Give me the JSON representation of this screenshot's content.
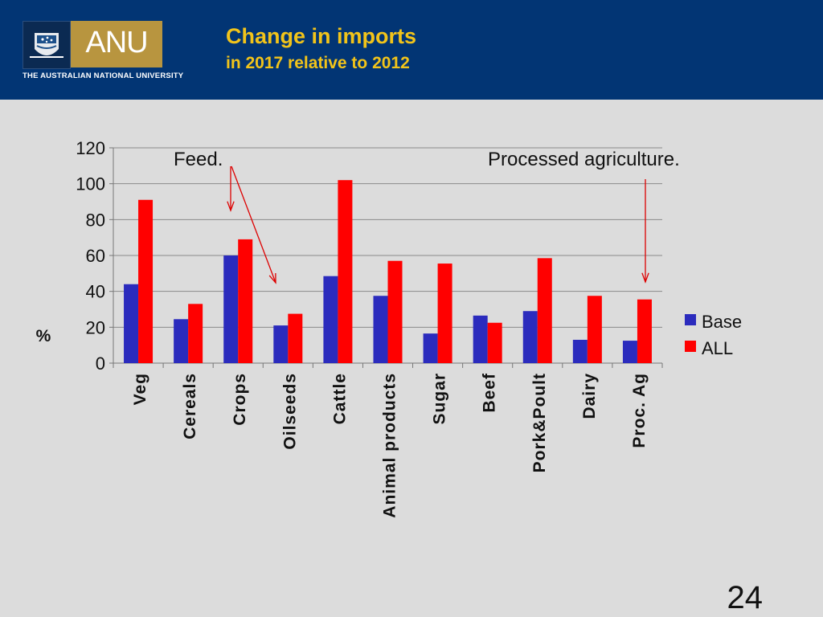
{
  "header": {
    "logo_text": "ANU",
    "university_name": "THE AUSTRALIAN NATIONAL UNIVERSITY",
    "title": "Change in imports",
    "subtitle": "in 2017 relative to 2012"
  },
  "page_number": "24",
  "colors": {
    "header_bg": "#023574",
    "title": "#f2c41a",
    "base": "#2b2bbd",
    "all": "#ff0000",
    "arrow": "#dd0000"
  },
  "chart_data": {
    "type": "bar",
    "categories": [
      "Veg",
      "Cereals",
      "Crops",
      "Oilseeds",
      "Cattle",
      "Animal products",
      "Sugar",
      "Beef",
      "Pork&Poult",
      "Dairy",
      "Proc. Ag"
    ],
    "series": [
      {
        "name": "Base",
        "values": [
          44,
          24.5,
          60,
          21,
          48.5,
          37.5,
          16.5,
          26.5,
          29,
          13,
          12.5
        ]
      },
      {
        "name": "ALL",
        "values": [
          91,
          33,
          69,
          27.5,
          102,
          57,
          55.5,
          22.5,
          58.5,
          37.5,
          35.5
        ]
      }
    ],
    "ylabel": "%",
    "ylim": [
      0,
      120
    ],
    "yticks": [
      0,
      20,
      40,
      60,
      80,
      100,
      120
    ],
    "grid": true,
    "legend": "right",
    "annotations": [
      {
        "text": "Feed.",
        "points_to": [
          "Crops",
          "Oilseeds"
        ]
      },
      {
        "text": "Processed agriculture.",
        "points_to": [
          "Proc. Ag"
        ]
      }
    ]
  }
}
